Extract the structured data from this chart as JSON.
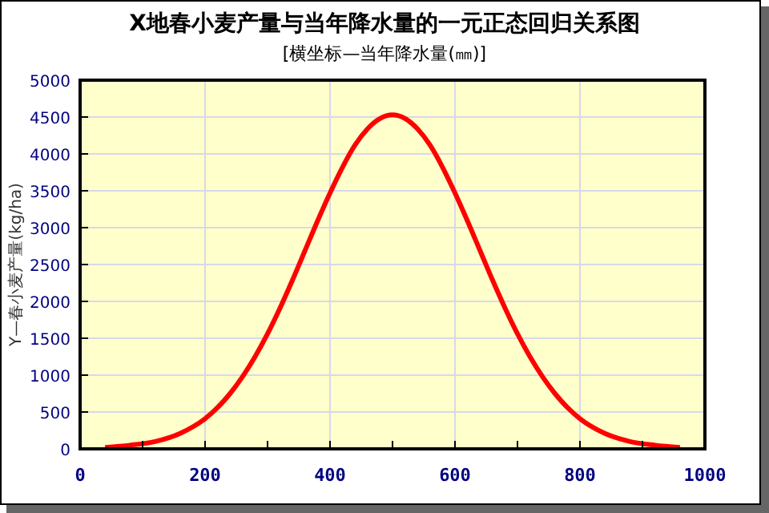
{
  "chart_data": {
    "type": "line",
    "title": "X地春小麦产量与当年降水量的一元正态回归关系图",
    "subtitle": "[横坐标—当年降水量(㎜)]",
    "ylabel": "Y—春小麦产量(kg/ha)",
    "x": [
      40,
      80,
      120,
      160,
      200,
      220,
      240,
      260,
      280,
      300,
      320,
      340,
      360,
      380,
      400,
      420,
      440,
      460,
      480,
      500,
      520,
      540,
      560,
      580,
      600,
      620,
      640,
      660,
      680,
      700,
      720,
      740,
      760,
      780,
      800,
      840,
      880,
      920,
      960
    ],
    "series": [
      {
        "color": "#ff0000",
        "values": [
          20,
          50,
          100,
          210,
          410,
          560,
          750,
          980,
          1250,
          1560,
          1910,
          2290,
          2690,
          3090,
          3470,
          3820,
          4120,
          4340,
          4480,
          4530,
          4480,
          4340,
          4120,
          3820,
          3470,
          3090,
          2690,
          2290,
          1910,
          1560,
          1250,
          980,
          750,
          560,
          410,
          210,
          100,
          50,
          20
        ]
      }
    ],
    "xlim": [
      0,
      1000
    ],
    "xticks": [
      0,
      {
        "value": 100,
        "label": null
      },
      200,
      {
        "value": 300,
        "label": null
      },
      400,
      {
        "value": 500,
        "label": null
      },
      600,
      {
        "value": 700,
        "label": null
      },
      800,
      {
        "value": 900,
        "label": null
      },
      1000
    ],
    "ylim": [
      0,
      5000
    ],
    "yticks": [
      0,
      500,
      1000,
      1500,
      2000,
      2500,
      3000,
      3500,
      4000,
      4500,
      5000
    ],
    "grid": true,
    "marker": "none",
    "line_style": "solid"
  }
}
